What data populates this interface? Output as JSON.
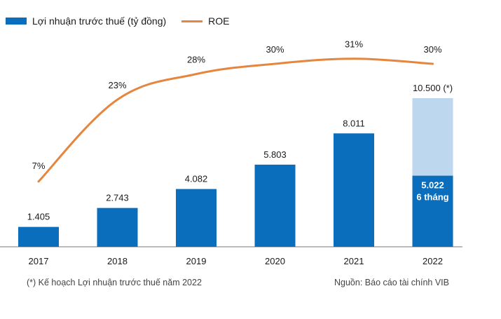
{
  "colors": {
    "bar": "#0a6ebd",
    "bar_plan": "#bdd7ee",
    "line": "#e5863f",
    "axis": "#777777"
  },
  "legend": {
    "bar_label": "Lợi nhuận trước thuế (tỷ đồng)",
    "line_label": "ROE"
  },
  "footnote": "(*) Kế hoạch Lợi nhuận trước thuế năm 2022",
  "source": "Nguồn: Báo cáo tài chính VIB",
  "chart_data": {
    "type": "bar",
    "categories": [
      "2017",
      "2018",
      "2019",
      "2020",
      "2021",
      "2022"
    ],
    "series": [
      {
        "name": "Lợi nhuận trước thuế (tỷ đồng)",
        "type": "bar",
        "values": [
          1405,
          2743,
          4082,
          5803,
          8011,
          5022
        ],
        "labels": [
          "1.405",
          "2.743",
          "4.082",
          "5.803",
          "8.011",
          "5.022"
        ]
      },
      {
        "name": "ROE",
        "type": "line",
        "values": [
          7,
          23,
          28,
          30,
          31,
          30
        ],
        "labels": [
          "7%",
          "23%",
          "28%",
          "30%",
          "31%",
          "30%"
        ]
      }
    ],
    "plan_2022": {
      "category": "2022",
      "value": 10500,
      "label": "10.500 (*)",
      "inner_label": "5.022",
      "inner_sublabel": "6 tháng"
    },
    "grid": false
  }
}
